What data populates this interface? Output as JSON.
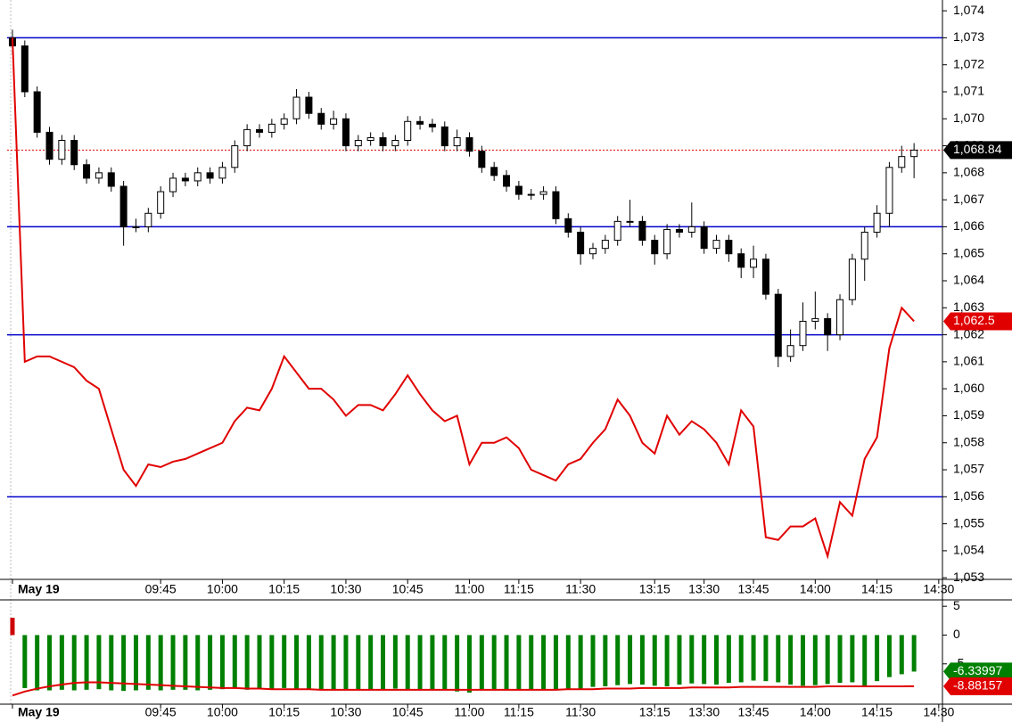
{
  "chart_data": [
    {
      "type": "candlestick",
      "xlim": [
        -0.43,
        75.3
      ],
      "ylim": [
        1052.94,
        1074.4
      ],
      "xticks": [
        {
          "value": 0,
          "label": "May 19"
        },
        {
          "value": 12,
          "label": "09:45"
        },
        {
          "value": 17,
          "label": "10:00"
        },
        {
          "value": 22,
          "label": "10:15"
        },
        {
          "value": 27,
          "label": "10:30"
        },
        {
          "value": 32,
          "label": "10:45"
        },
        {
          "value": 37,
          "label": "11:00"
        },
        {
          "value": 41,
          "label": "11:15"
        },
        {
          "value": 46,
          "label": "11:30"
        },
        {
          "value": 52,
          "label": "13:15"
        },
        {
          "value": 56,
          "label": "13:30"
        },
        {
          "value": 60,
          "label": "13:45"
        },
        {
          "value": 65,
          "label": "14:00"
        },
        {
          "value": 70,
          "label": "14:15"
        },
        {
          "value": 75,
          "label": "14:30"
        }
      ],
      "yticks": [
        {
          "value": 1053,
          "label": "1,053"
        },
        {
          "value": 1054,
          "label": "1,054"
        },
        {
          "value": 1055,
          "label": "1,055"
        },
        {
          "value": 1056,
          "label": "1,056"
        },
        {
          "value": 1057,
          "label": "1,057"
        },
        {
          "value": 1058,
          "label": "1,058"
        },
        {
          "value": 1059,
          "label": "1,059"
        },
        {
          "value": 1060,
          "label": "1,060"
        },
        {
          "value": 1061,
          "label": "1,061"
        },
        {
          "value": 1062,
          "label": "1,062"
        },
        {
          "value": 1063,
          "label": "1,063"
        },
        {
          "value": 1064,
          "label": "1,064"
        },
        {
          "value": 1065,
          "label": "1,065"
        },
        {
          "value": 1066,
          "label": "1,066"
        },
        {
          "value": 1067,
          "label": "1,067"
        },
        {
          "value": 1068,
          "label": "1,068"
        },
        {
          "value": 1069,
          "label": "1,069"
        },
        {
          "value": 1070,
          "label": "1,070"
        },
        {
          "value": 1071,
          "label": "1,071"
        },
        {
          "value": 1072,
          "label": "1,072"
        },
        {
          "value": 1073,
          "label": "1,073"
        },
        {
          "value": 1074,
          "label": "1,074"
        }
      ],
      "candles": {
        "open": [
          1073.0,
          1072.7,
          1071.0,
          1069.5,
          1068.5,
          1069.2,
          1068.3,
          1067.8,
          1068.0,
          1067.5,
          1066.0,
          1066.0,
          1066.5,
          1067.3,
          1067.8,
          1067.7,
          1068.0,
          1067.8,
          1068.2,
          1069.0,
          1069.6,
          1069.5,
          1069.8,
          1070.0,
          1070.8,
          1070.2,
          1069.8,
          1070.0,
          1069.0,
          1069.2,
          1069.3,
          1069.0,
          1069.2,
          1069.9,
          1069.8,
          1069.7,
          1069.0,
          1069.3,
          1068.8,
          1068.2,
          1067.9,
          1067.5,
          1067.2,
          1067.2,
          1067.3,
          1066.3,
          1065.8,
          1065.0,
          1065.2,
          1065.5,
          1066.2,
          1066.2,
          1065.5,
          1065.0,
          1065.9,
          1065.8,
          1066.0,
          1065.2,
          1065.5,
          1065.0,
          1064.5,
          1064.8,
          1063.5,
          1061.2,
          1061.6,
          1062.5,
          1062.6,
          1062.0,
          1063.3,
          1064.8,
          1065.8,
          1066.5,
          1068.2,
          1068.6
        ],
        "high": [
          1073.3,
          1072.9,
          1071.2,
          1069.7,
          1069.4,
          1069.4,
          1068.5,
          1068.2,
          1068.2,
          1067.7,
          1066.3,
          1066.7,
          1067.5,
          1068.0,
          1068.0,
          1068.2,
          1068.2,
          1068.4,
          1069.2,
          1069.8,
          1069.8,
          1070.0,
          1070.2,
          1071.1,
          1071.0,
          1070.4,
          1070.3,
          1070.2,
          1069.4,
          1069.5,
          1069.5,
          1069.4,
          1070.1,
          1070.1,
          1070.0,
          1069.9,
          1069.6,
          1069.5,
          1069.0,
          1068.4,
          1068.1,
          1067.7,
          1067.4,
          1067.5,
          1067.5,
          1066.5,
          1066.0,
          1065.4,
          1065.7,
          1066.4,
          1067.0,
          1066.4,
          1065.7,
          1066.1,
          1066.1,
          1066.9,
          1066.2,
          1065.7,
          1065.7,
          1065.2,
          1065.3,
          1065.0,
          1063.7,
          1062.2,
          1063.2,
          1063.6,
          1062.8,
          1063.5,
          1065.0,
          1066.0,
          1066.8,
          1068.4,
          1069.0,
          1069.1
        ],
        "low": [
          1072.4,
          1070.8,
          1069.3,
          1068.3,
          1068.3,
          1068.1,
          1067.6,
          1067.6,
          1067.3,
          1065.3,
          1065.8,
          1065.8,
          1066.3,
          1067.1,
          1067.5,
          1067.5,
          1067.6,
          1067.6,
          1068.0,
          1068.8,
          1069.3,
          1069.3,
          1069.6,
          1069.8,
          1070.0,
          1069.6,
          1069.6,
          1068.8,
          1068.8,
          1069.0,
          1068.8,
          1068.8,
          1069.0,
          1069.6,
          1069.5,
          1068.8,
          1068.8,
          1068.6,
          1068.0,
          1067.7,
          1067.3,
          1067.0,
          1067.0,
          1067.0,
          1066.1,
          1065.6,
          1064.6,
          1064.8,
          1065.0,
          1065.3,
          1066.0,
          1065.3,
          1064.6,
          1064.8,
          1065.6,
          1065.6,
          1065.0,
          1065.0,
          1064.7,
          1064.1,
          1064.1,
          1063.3,
          1060.8,
          1061.0,
          1061.4,
          1062.2,
          1061.4,
          1061.8,
          1063.1,
          1064.0,
          1065.6,
          1066.0,
          1068.0,
          1067.8
        ],
        "close": [
          1072.7,
          1071.0,
          1069.5,
          1068.5,
          1069.2,
          1068.3,
          1067.8,
          1068.0,
          1067.5,
          1066.0,
          1066.0,
          1066.5,
          1067.3,
          1067.8,
          1067.7,
          1068.0,
          1067.8,
          1068.2,
          1069.0,
          1069.6,
          1069.5,
          1069.8,
          1070.0,
          1070.8,
          1070.2,
          1069.8,
          1070.0,
          1069.0,
          1069.2,
          1069.3,
          1069.0,
          1069.2,
          1069.9,
          1069.8,
          1069.7,
          1069.0,
          1069.3,
          1068.8,
          1068.2,
          1067.9,
          1067.5,
          1067.2,
          1067.2,
          1067.3,
          1066.3,
          1065.8,
          1065.0,
          1065.2,
          1065.5,
          1066.2,
          1066.2,
          1065.5,
          1065.0,
          1065.9,
          1065.8,
          1066.0,
          1065.2,
          1065.5,
          1065.0,
          1064.5,
          1064.8,
          1063.5,
          1061.2,
          1061.6,
          1062.5,
          1062.6,
          1062.0,
          1063.3,
          1064.8,
          1065.8,
          1066.5,
          1068.2,
          1068.6,
          1068.84
        ],
        "up_color": "#ffffff",
        "down_color": "#000000",
        "last_label": "1,068.84",
        "last_color": "#000000"
      },
      "series": [
        {
          "type": "line",
          "color": "#e00000",
          "last_label": "1,062.5",
          "values": [
            1073.0,
            1061.0,
            1061.2,
            1061.2,
            1061.0,
            1060.8,
            1060.3,
            1060.0,
            1058.5,
            1057.0,
            1056.4,
            1057.2,
            1057.1,
            1057.3,
            1057.4,
            1057.6,
            1057.8,
            1058.0,
            1058.8,
            1059.3,
            1059.2,
            1060.0,
            1061.2,
            1060.6,
            1060.0,
            1060.0,
            1059.6,
            1059.0,
            1059.4,
            1059.4,
            1059.2,
            1059.8,
            1060.5,
            1059.8,
            1059.2,
            1058.8,
            1059.0,
            1057.2,
            1058.0,
            1058.0,
            1058.2,
            1057.8,
            1057.0,
            1056.8,
            1056.6,
            1057.2,
            1057.4,
            1058.0,
            1058.5,
            1059.6,
            1059.0,
            1058.0,
            1057.6,
            1059.0,
            1058.3,
            1058.8,
            1058.5,
            1058.0,
            1057.2,
            1059.2,
            1058.6,
            1054.5,
            1054.4,
            1054.9,
            1054.9,
            1055.2,
            1053.8,
            1055.8,
            1055.3,
            1057.4,
            1058.2,
            1061.5,
            1063.0,
            1062.5
          ]
        }
      ],
      "levels": {
        "color": "#0000cc",
        "values": [
          1073,
          1066,
          1062,
          1056
        ]
      }
    },
    {
      "type": "bar",
      "ylim": [
        -12,
        5.8
      ],
      "yticks": [
        {
          "value": -5,
          "label": "-5"
        },
        0,
        5
      ],
      "color": "#008000",
      "positive_color": "#cc0000",
      "values": [
        3.0,
        -9.2,
        -9.6,
        -9.6,
        -9.5,
        -9.6,
        -9.5,
        -9.4,
        -9.6,
        -9.7,
        -9.6,
        -9.5,
        -9.6,
        -9.5,
        -9.5,
        -9.6,
        -9.5,
        -9.4,
        -9.3,
        -9.5,
        -9.4,
        -9.3,
        -9.2,
        -9.4,
        -9.5,
        -9.5,
        -9.6,
        -9.6,
        -9.5,
        -9.5,
        -9.4,
        -9.3,
        -9.4,
        -9.5,
        -9.6,
        -9.6,
        -9.8,
        -10.0,
        -9.6,
        -9.5,
        -9.5,
        -9.4,
        -9.5,
        -9.5,
        -9.6,
        -9.4,
        -9.3,
        -9.0,
        -8.9,
        -8.7,
        -8.5,
        -8.6,
        -8.8,
        -8.9,
        -8.6,
        -8.4,
        -8.5,
        -8.6,
        -8.3,
        -8.2,
        -7.9,
        -8.0,
        -8.2,
        -8.6,
        -8.8,
        -8.7,
        -8.5,
        -8.3,
        -8.2,
        -8.8,
        -8.0,
        -7.3,
        -6.8,
        -6.33997
      ],
      "series": [
        {
          "type": "line",
          "color": "#e00000",
          "values": [
            -10.5,
            -9.8,
            -9.3,
            -8.9,
            -8.6,
            -8.3,
            -8.2,
            -8.2,
            -8.3,
            -8.4,
            -8.5,
            -8.6,
            -8.7,
            -8.8,
            -8.9,
            -9.0,
            -9.1,
            -9.2,
            -9.2,
            -9.3,
            -9.3,
            -9.4,
            -9.4,
            -9.4,
            -9.4,
            -9.5,
            -9.5,
            -9.5,
            -9.5,
            -9.5,
            -9.5,
            -9.5,
            -9.5,
            -9.5,
            -9.5,
            -9.5,
            -9.5,
            -9.5,
            -9.5,
            -9.5,
            -9.5,
            -9.5,
            -9.5,
            -9.5,
            -9.5,
            -9.4,
            -9.4,
            -9.4,
            -9.3,
            -9.3,
            -9.3,
            -9.2,
            -9.2,
            -9.2,
            -9.2,
            -9.1,
            -9.1,
            -9.1,
            -9.1,
            -9.0,
            -9.0,
            -9.0,
            -9.0,
            -9.0,
            -9.0,
            -9.0,
            -8.9,
            -8.9,
            -8.9,
            -8.9,
            -8.9,
            -8.9,
            -8.9,
            -8.88157
          ]
        }
      ]
    }
  ]
}
